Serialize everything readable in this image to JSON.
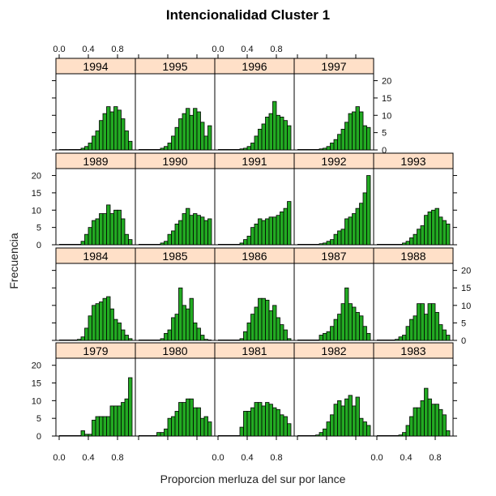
{
  "chart_data": {
    "type": "bar",
    "title": "Intencionalidad Cluster 1",
    "xlabel": "Proporcion merluza del sur por lance",
    "ylabel": "Frecuencia",
    "xlim": [
      0,
      1
    ],
    "ylim": [
      0,
      22
    ],
    "x_ticks": [
      "0.0",
      "0.4",
      "0.8"
    ],
    "y_ticks": [
      "0",
      "5",
      "10",
      "15",
      "20"
    ],
    "bin_width": 0.05,
    "bin_starts": [
      0.0,
      0.05,
      0.1,
      0.15,
      0.2,
      0.25,
      0.3,
      0.35,
      0.4,
      0.45,
      0.5,
      0.55,
      0.6,
      0.65,
      0.7,
      0.75,
      0.8,
      0.85,
      0.9,
      0.95
    ],
    "colors": {
      "bar_fill": "#22aa22",
      "bar_stroke": "#000000",
      "strip_fill": "#ffe0c8",
      "frame": "#000000"
    },
    "panels": [
      {
        "year": "1979",
        "values": [
          0,
          0,
          0,
          0,
          0,
          0,
          1.5,
          0.5,
          0.5,
          4.5,
          5.5,
          5.5,
          5.5,
          5.5,
          8.5,
          8.5,
          8.5,
          9.5,
          10.5,
          16.5
        ]
      },
      {
        "year": "1980",
        "values": [
          0,
          0,
          0,
          0,
          0,
          1,
          1,
          2,
          5,
          5.5,
          7,
          9.5,
          9.5,
          10.5,
          10.5,
          8,
          8,
          5,
          5.5,
          4
        ]
      },
      {
        "year": "1981",
        "values": [
          0,
          0,
          0,
          0,
          0,
          0,
          2.5,
          7,
          7,
          8,
          9.5,
          9.5,
          8.5,
          9.5,
          9,
          8,
          7.5,
          6,
          5.5,
          3.5
        ]
      },
      {
        "year": "1982",
        "values": [
          0,
          0,
          0,
          0,
          0,
          0.3,
          1,
          2,
          4,
          6,
          9,
          10,
          8.5,
          10.5,
          11.5,
          8.5,
          11,
          5,
          4,
          3
        ]
      },
      {
        "year": "1983",
        "values": [
          0,
          0,
          0,
          0,
          0,
          0,
          0.3,
          1,
          3,
          5.5,
          8,
          8,
          10,
          13.5,
          10.5,
          9,
          9,
          7.5,
          6,
          1.5
        ]
      },
      {
        "year": "1984",
        "values": [
          0,
          0,
          0,
          0,
          0,
          0.3,
          1,
          3.5,
          7,
          10,
          10.5,
          11,
          12,
          12.5,
          9,
          6,
          5,
          3,
          1.5,
          0.5
        ]
      },
      {
        "year": "1985",
        "values": [
          0,
          0,
          0,
          0,
          0,
          0,
          0.5,
          2,
          3,
          6.5,
          7.5,
          15,
          10,
          9,
          12,
          5,
          3.5,
          1.5,
          0.3,
          0
        ]
      },
      {
        "year": "1986",
        "values": [
          0,
          0,
          0,
          0,
          0,
          0,
          0.5,
          2.5,
          5,
          7.5,
          9.5,
          12,
          12,
          11.5,
          8.5,
          10,
          6.5,
          4.5,
          3,
          0.5
        ]
      },
      {
        "year": "1987",
        "values": [
          0,
          0,
          0,
          0,
          0,
          0,
          1.5,
          2,
          2.5,
          4,
          6,
          7.5,
          10.5,
          15,
          10.5,
          9.5,
          8,
          7,
          4,
          2
        ]
      },
      {
        "year": "1988",
        "values": [
          0,
          0,
          0,
          0,
          0,
          0.3,
          1,
          1.5,
          4,
          6,
          7,
          10.5,
          10.5,
          7.5,
          10.5,
          10.5,
          8,
          4.5,
          3,
          1.5
        ]
      },
      {
        "year": "1989",
        "values": [
          0,
          0,
          0,
          0,
          0,
          0,
          1,
          3,
          5,
          7,
          7.5,
          9,
          9,
          11.5,
          9,
          10,
          10,
          7.5,
          3,
          1.5
        ]
      },
      {
        "year": "1990",
        "values": [
          0,
          0,
          0,
          0,
          0,
          0,
          0.5,
          1,
          3,
          4,
          6,
          7,
          9,
          10.5,
          8.5,
          9,
          8.5,
          8,
          7,
          7.5
        ]
      },
      {
        "year": "1991",
        "values": [
          0,
          0,
          0,
          0,
          0,
          0,
          0.5,
          1.5,
          2.5,
          5,
          6,
          7.5,
          7,
          7.5,
          8,
          8,
          8.5,
          9.5,
          10.5,
          12.5
        ]
      },
      {
        "year": "1992",
        "values": [
          0,
          0,
          0,
          0,
          0,
          0,
          0.3,
          0.5,
          1,
          1.5,
          3,
          4,
          4.5,
          7.5,
          8,
          9,
          10.5,
          12,
          15,
          20
        ]
      },
      {
        "year": "1993",
        "values": [
          0,
          0,
          0,
          0,
          0,
          0,
          0,
          0.5,
          1,
          2,
          3,
          4.5,
          5.5,
          8.5,
          9.5,
          10,
          10.5,
          8,
          7,
          6
        ]
      },
      {
        "year": "1994",
        "values": [
          0,
          0,
          0,
          0,
          0,
          0,
          0.5,
          1,
          2,
          4,
          5.5,
          8.5,
          10.5,
          12.5,
          11,
          12.5,
          11.5,
          9,
          5.5,
          2.5
        ]
      },
      {
        "year": "1995",
        "values": [
          0,
          0,
          0,
          0,
          0,
          0,
          0.5,
          1,
          2,
          4,
          6.5,
          9,
          10.5,
          12,
          10,
          12,
          11,
          8,
          4,
          7
        ]
      },
      {
        "year": "1996",
        "values": [
          0,
          0,
          0,
          0,
          0,
          0,
          0.3,
          0.5,
          1,
          2,
          4,
          6,
          7.5,
          9.5,
          10.5,
          14,
          10,
          9.5,
          8.5,
          7
        ]
      },
      {
        "year": "1997",
        "values": [
          0,
          0,
          0,
          0,
          0,
          0,
          0.3,
          0.5,
          1,
          2,
          3,
          4.5,
          6,
          8,
          10.5,
          11,
          12.5,
          11,
          7,
          6.5
        ]
      }
    ]
  }
}
